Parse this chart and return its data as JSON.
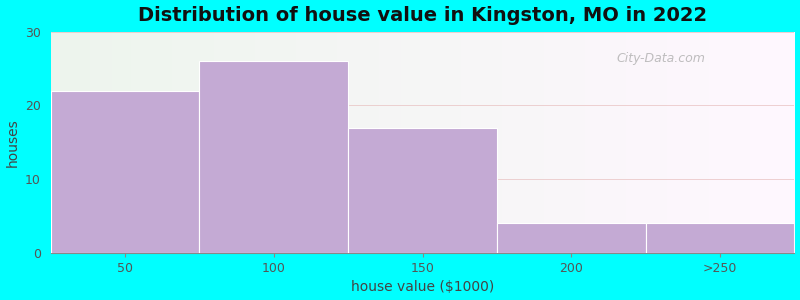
{
  "title": "Distribution of house value in Kingston, MO in 2022",
  "xlabel": "house value ($1000)",
  "ylabel": "houses",
  "categories": [
    "50",
    "100",
    "150",
    "200",
    ">250"
  ],
  "values": [
    22,
    26,
    17,
    4,
    4
  ],
  "bar_color": "#c4aad4",
  "bar_edgecolor": "#ffffff",
  "ylim": [
    0,
    30
  ],
  "yticks": [
    0,
    10,
    20,
    30
  ],
  "background_outer": "#00FFFF",
  "title_fontsize": 14,
  "label_fontsize": 10,
  "tick_fontsize": 9,
  "watermark": "City-Data.com"
}
